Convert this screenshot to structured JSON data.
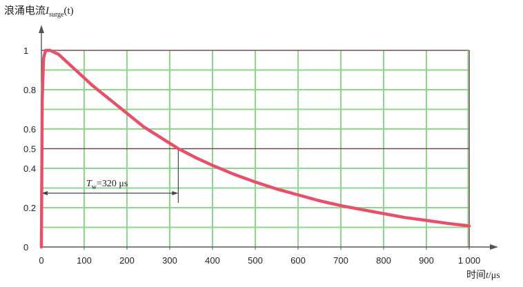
{
  "chart_data": {
    "type": "line",
    "title": "",
    "ylabel": {
      "prefix": "浪涌电流",
      "symbol": "I",
      "subscript": "surge",
      "arg": "(t)"
    },
    "xlabel": {
      "prefix": "时间",
      "symbol": "t",
      "unit": "/μs"
    },
    "xlim": [
      0,
      1000
    ],
    "ylim": [
      0,
      1.0
    ],
    "x_ticks": [
      0,
      100,
      200,
      300,
      400,
      500,
      600,
      700,
      800,
      900,
      1000
    ],
    "x_tick_labels": [
      "0",
      "100",
      "200",
      "300",
      "400",
      "500",
      "600",
      "700",
      "800",
      "900",
      "1 000"
    ],
    "y_ticks": [
      0,
      0.2,
      0.4,
      0.5,
      0.6,
      0.8,
      1
    ],
    "y_tick_labels": [
      "0",
      "0.2",
      "0.4",
      "0.5",
      "0.6",
      "0.8",
      "1"
    ],
    "grid": true,
    "colors": {
      "curve": "#e8506a",
      "grid": "#8ed68e",
      "frame": "#7a4a4a",
      "axis": "#555555"
    },
    "series": [
      {
        "x": [
          0,
          2,
          5,
          10,
          20,
          40,
          80,
          120,
          160,
          200,
          240,
          280,
          320,
          360,
          400,
          450,
          500,
          550,
          600,
          650,
          700,
          750,
          800,
          850,
          900,
          950,
          1000
        ],
        "y": [
          0,
          0.75,
          0.96,
          1.0,
          1.0,
          0.98,
          0.9,
          0.82,
          0.75,
          0.68,
          0.61,
          0.555,
          0.5,
          0.455,
          0.415,
          0.37,
          0.33,
          0.295,
          0.265,
          0.235,
          0.21,
          0.19,
          0.17,
          0.15,
          0.135,
          0.12,
          0.107
        ]
      }
    ],
    "annotations": {
      "hline_y": 0.5,
      "vline_x": 320,
      "tw": {
        "symbol": "T",
        "subscript": "w",
        "text": "=320 μs"
      }
    }
  }
}
